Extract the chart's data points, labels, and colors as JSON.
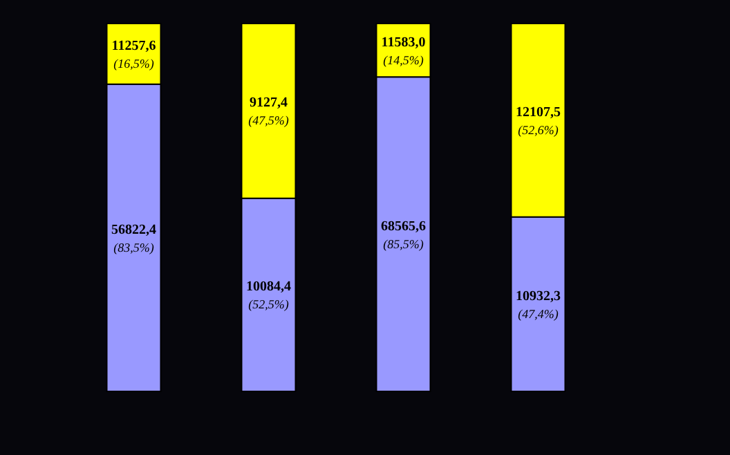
{
  "chart_data": {
    "type": "bar",
    "stacked": true,
    "tick_labels": false,
    "categories": [
      null,
      null,
      null,
      null
    ],
    "series": [
      {
        "color": "#9999ff",
        "values": [
          83.5,
          52.5,
          85.5,
          47.4
        ],
        "value_labels": [
          "(83,5%)",
          "(52,5%)",
          "(85,5%)",
          "(47,4%)"
        ]
      },
      {
        "color": "#ffff00",
        "values": [
          16.5,
          47.5,
          14.5,
          52.6
        ],
        "value_labels": [
          "(16,5%)",
          "(47,5%)",
          "(14,5%)",
          "(52,6%)"
        ]
      }
    ],
    "annotations": [
      "56822,4",
      "10084,4",
      "68565,6",
      "10932,3",
      "11257,6",
      "9127,4",
      "11583,0",
      "12107,5"
    ]
  }
}
